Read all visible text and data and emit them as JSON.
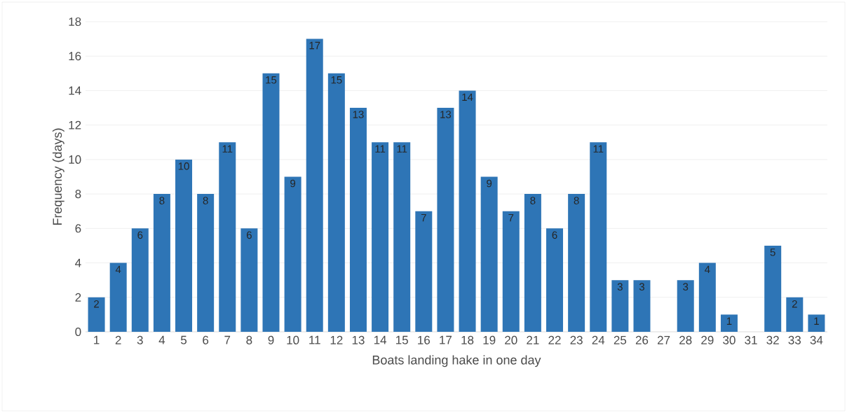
{
  "chart_data": {
    "type": "bar",
    "xlabel": "Boats landing hake in one day",
    "ylabel": "Frequency (days)",
    "categories": [
      "1",
      "2",
      "3",
      "4",
      "5",
      "6",
      "7",
      "8",
      "9",
      "10",
      "11",
      "12",
      "13",
      "14",
      "15",
      "16",
      "17",
      "18",
      "19",
      "20",
      "21",
      "22",
      "23",
      "24",
      "25",
      "26",
      "27",
      "28",
      "29",
      "30",
      "31",
      "32",
      "33",
      "34"
    ],
    "values": [
      2,
      4,
      6,
      8,
      10,
      8,
      11,
      6,
      15,
      9,
      17,
      15,
      13,
      11,
      11,
      7,
      13,
      14,
      9,
      7,
      8,
      6,
      8,
      11,
      3,
      3,
      0,
      3,
      4,
      1,
      0,
      5,
      2,
      1
    ],
    "value_labels": [
      "2",
      "4",
      "6",
      "8",
      "10",
      "8",
      "11",
      "6",
      "15",
      "9",
      "17",
      "15",
      "13",
      "11",
      "11",
      "7",
      "13",
      "14",
      "9",
      "7",
      "8",
      "6",
      "8",
      "11",
      "3",
      "3",
      null,
      "3",
      "4",
      "1",
      null,
      "5",
      "2",
      "1"
    ],
    "color": "#2e75b6",
    "ylim": [
      0,
      18
    ],
    "yticks": [
      0,
      2,
      4,
      6,
      8,
      10,
      12,
      14,
      16,
      18
    ],
    "grid": "y"
  }
}
